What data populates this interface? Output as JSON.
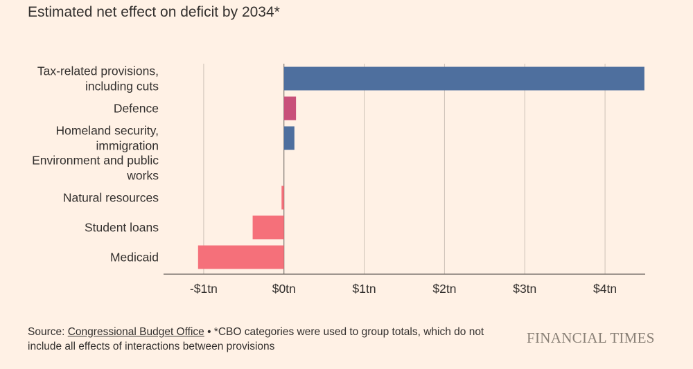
{
  "title": "Estimated net effect on deficit by 2034*",
  "chart_data": {
    "type": "bar",
    "orientation": "horizontal",
    "title": "Estimated net effect on deficit by 2034*",
    "unit": "$tn",
    "categories": [
      [
        "Tax-related provisions,",
        "including cuts"
      ],
      [
        "Defence"
      ],
      [
        "Homeland security,",
        "immigration"
      ],
      [
        "Environment and public",
        "works"
      ],
      [
        "Natural resources"
      ],
      [
        "Student loans"
      ],
      [
        "Medicaid"
      ]
    ],
    "values": [
      4.49,
      0.15,
      0.13,
      0.0,
      -0.03,
      -0.39,
      -1.07
    ],
    "colors": [
      "#4e6f9e",
      "#c8507a",
      "#4e6f9e",
      "#4e6f9e",
      "#f5707a",
      "#f5707a",
      "#f5707a"
    ],
    "xlim": [
      -1.5,
      4.5
    ],
    "ticks": [
      -1,
      0,
      1,
      2,
      3,
      4
    ],
    "tick_labels": [
      "-$1tn",
      "$0tn",
      "$1tn",
      "$2tn",
      "$3tn",
      "$4tn"
    ],
    "grid": true
  },
  "source": {
    "prefix": "Source: ",
    "link_text": "Congressional Budget Office",
    "note": " • *CBO categories were used to group totals, which do not include all effects of interactions between provisions"
  },
  "brand": "FINANCIAL TIMES"
}
